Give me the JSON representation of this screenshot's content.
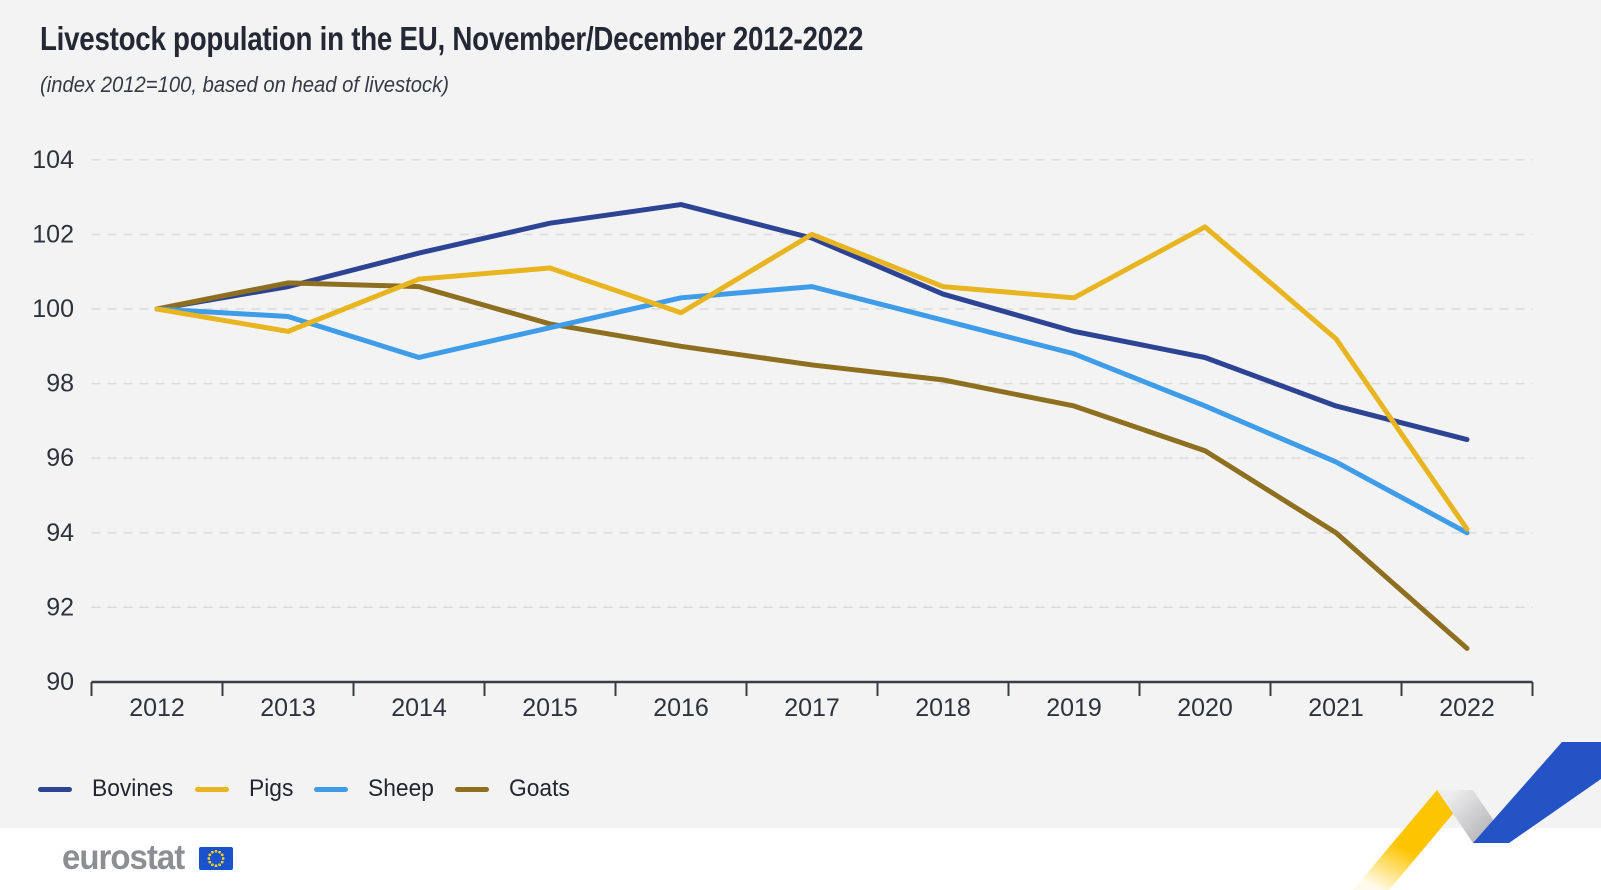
{
  "header": {
    "title": "Livestock population in the EU, November/December 2012-2022",
    "subtitle": "(index 2012=100, based on head of livestock)"
  },
  "chart_data": {
    "type": "line",
    "title": "Livestock population in the EU, November/December 2012-2022",
    "subtitle": "(index 2012=100, based on head of livestock)",
    "x": [
      2012,
      2013,
      2014,
      2015,
      2016,
      2017,
      2018,
      2019,
      2020,
      2021,
      2022
    ],
    "series": [
      {
        "name": "Bovines",
        "color": "#2d4494",
        "values": [
          100,
          100.6,
          101.5,
          102.3,
          102.8,
          101.9,
          100.4,
          99.4,
          98.7,
          97.4,
          96.5
        ]
      },
      {
        "name": "Pigs",
        "color": "#e8b520",
        "values": [
          100,
          99.4,
          100.8,
          101.1,
          99.9,
          102,
          100.6,
          100.3,
          102.2,
          99.2,
          94.1
        ]
      },
      {
        "name": "Sheep",
        "color": "#3f9ce9",
        "values": [
          100,
          99.8,
          98.7,
          99.5,
          100.3,
          100.6,
          99.7,
          98.8,
          97.4,
          95.9,
          94
        ]
      },
      {
        "name": "Goats",
        "color": "#8d6f1f",
        "values": [
          100,
          100.7,
          100.6,
          99.6,
          99,
          98.5,
          98.1,
          97.4,
          96.2,
          94,
          90.9
        ]
      }
    ],
    "ylim": [
      90,
      104
    ],
    "ytick_step": 2,
    "yticks": [
      90,
      92,
      94,
      96,
      98,
      100,
      102,
      104
    ],
    "grid": "dashed-horizontal",
    "legend_position": "bottom-left",
    "colors": {
      "background": "#f3f3f4",
      "gridline": "#d9dadc",
      "axis": "#3a3d45",
      "tick_text": "#2e323b"
    }
  },
  "footer": {
    "logo_text": "eurostat",
    "flag_blue": "#1952cc",
    "star_yellow": "#ffd617",
    "ribbon_yellow": "#fdc500",
    "ribbon_blue": "#2353c4",
    "ribbon_gray_light": "#ededee",
    "ribbon_gray_dark": "#a7a7ab"
  }
}
